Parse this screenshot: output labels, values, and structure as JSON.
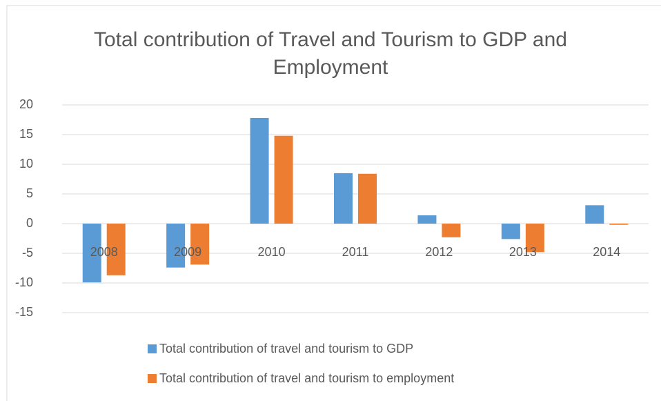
{
  "chart_data": {
    "type": "bar",
    "title": "Total contribution of Travel and Tourism to GDP and Employment",
    "categories": [
      "2008",
      "2009",
      "2010",
      "2011",
      "2012",
      "2013",
      "2014"
    ],
    "series": [
      {
        "name": "Total contribution of travel and tourism to GDP",
        "color": "#5b9bd5",
        "values": [
          -9.9,
          -7.4,
          17.8,
          8.5,
          1.4,
          -2.6,
          3.1
        ]
      },
      {
        "name": "Total contribution of travel and tourism to employment",
        "color": "#ed7d31",
        "values": [
          -8.7,
          -6.9,
          14.8,
          8.4,
          -2.3,
          -4.8,
          -0.2
        ]
      }
    ],
    "ylim": [
      -15,
      20
    ],
    "yticks": [
      -15,
      -10,
      -5,
      0,
      5,
      10,
      15,
      20
    ],
    "grid": true,
    "legend": "bottom"
  }
}
